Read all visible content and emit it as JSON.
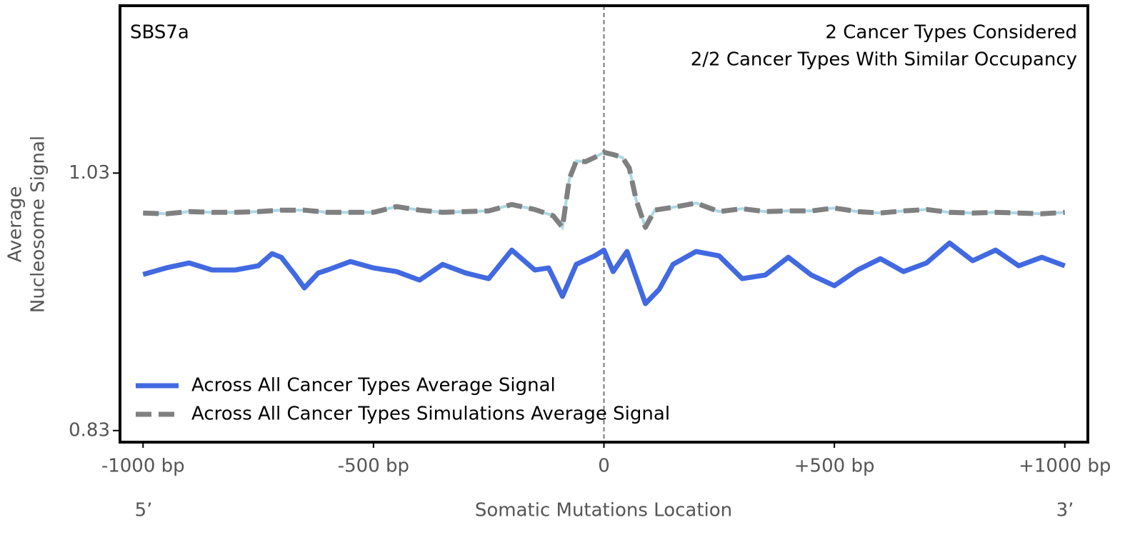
{
  "chart_data": {
    "type": "line",
    "signature": "SBS7a",
    "annotations": [
      "2 Cancer Types Considered",
      "2/2 Cancer Types With Similar Occupancy"
    ],
    "xlabel": "Somatic Mutations Location",
    "x_end_labels": [
      "5’",
      "3’"
    ],
    "ylabel": [
      "Average",
      "Nucleosome Signal"
    ],
    "xlim": [
      -1050,
      1050
    ],
    "ylim": [
      0.821,
      1.16
    ],
    "xticks": [
      {
        "value": -1000,
        "label": "-1000 bp"
      },
      {
        "value": -500,
        "label": "-500 bp"
      },
      0,
      {
        "value": 500,
        "label": "+500 bp"
      },
      {
        "value": 1000,
        "label": "+1000 bp"
      }
    ],
    "yticks": [
      0.83,
      1.03
    ],
    "vline": 0,
    "legend": "lower left",
    "series": [
      {
        "name": "Across All Cancer Types Average Signal",
        "color": "#4169e1",
        "dash": false,
        "x": [
          -1000,
          -950,
          -900,
          -850,
          -800,
          -750,
          -720,
          -700,
          -670,
          -650,
          -620,
          -600,
          -550,
          -500,
          -450,
          -400,
          -350,
          -300,
          -250,
          -200,
          -150,
          -120,
          -90,
          -60,
          -20,
          0,
          20,
          50,
          90,
          120,
          150,
          200,
          250,
          300,
          350,
          400,
          450,
          500,
          550,
          600,
          650,
          700,
          750,
          800,
          850,
          900,
          950,
          1000
        ],
        "values": [
          0.9513,
          0.9563,
          0.9602,
          0.9547,
          0.9547,
          0.958,
          0.9674,
          0.9646,
          0.9508,
          0.9408,
          0.9524,
          0.9547,
          0.9613,
          0.9563,
          0.9535,
          0.9469,
          0.9591,
          0.9524,
          0.948,
          0.9702,
          0.9547,
          0.9563,
          0.9342,
          0.9591,
          0.9657,
          0.9702,
          0.9535,
          0.9691,
          0.9286,
          0.9397,
          0.9591,
          0.9691,
          0.9657,
          0.948,
          0.9508,
          0.9646,
          0.9508,
          0.9425,
          0.9547,
          0.9635,
          0.9535,
          0.9602,
          0.9757,
          0.9619,
          0.9702,
          0.958,
          0.9646,
          0.958
        ]
      },
      {
        "name": "Across All Cancer Types Simulations Average Signal",
        "color": "#808080",
        "under_color": "#add8e6",
        "dash": true,
        "x": [
          -1000,
          -950,
          -900,
          -850,
          -800,
          -750,
          -700,
          -650,
          -600,
          -550,
          -500,
          -450,
          -400,
          -350,
          -300,
          -250,
          -200,
          -150,
          -110,
          -90,
          -75,
          -60,
          -40,
          -20,
          0,
          20,
          40,
          55,
          70,
          90,
          110,
          150,
          200,
          250,
          300,
          350,
          400,
          450,
          500,
          550,
          600,
          650,
          700,
          750,
          800,
          850,
          900,
          950,
          1000
        ],
        "values": [
          0.999,
          0.9984,
          1.0001,
          0.9995,
          0.9995,
          1.0001,
          1.0012,
          1.0012,
          0.9995,
          0.9995,
          0.9995,
          1.004,
          1.0012,
          0.9995,
          1.0001,
          1.0006,
          1.0056,
          1.0017,
          0.9968,
          0.9879,
          1.0256,
          1.0394,
          1.0389,
          1.0422,
          1.0461,
          1.0444,
          1.0422,
          1.0339,
          1.0089,
          0.9879,
          1.0012,
          1.0034,
          1.0067,
          1.0001,
          1.0023,
          1.0001,
          1.0006,
          1.0006,
          1.0029,
          1.0001,
          0.999,
          1.0006,
          1.0017,
          0.9995,
          0.999,
          0.9995,
          0.999,
          0.9984,
          0.9995
        ]
      }
    ]
  }
}
